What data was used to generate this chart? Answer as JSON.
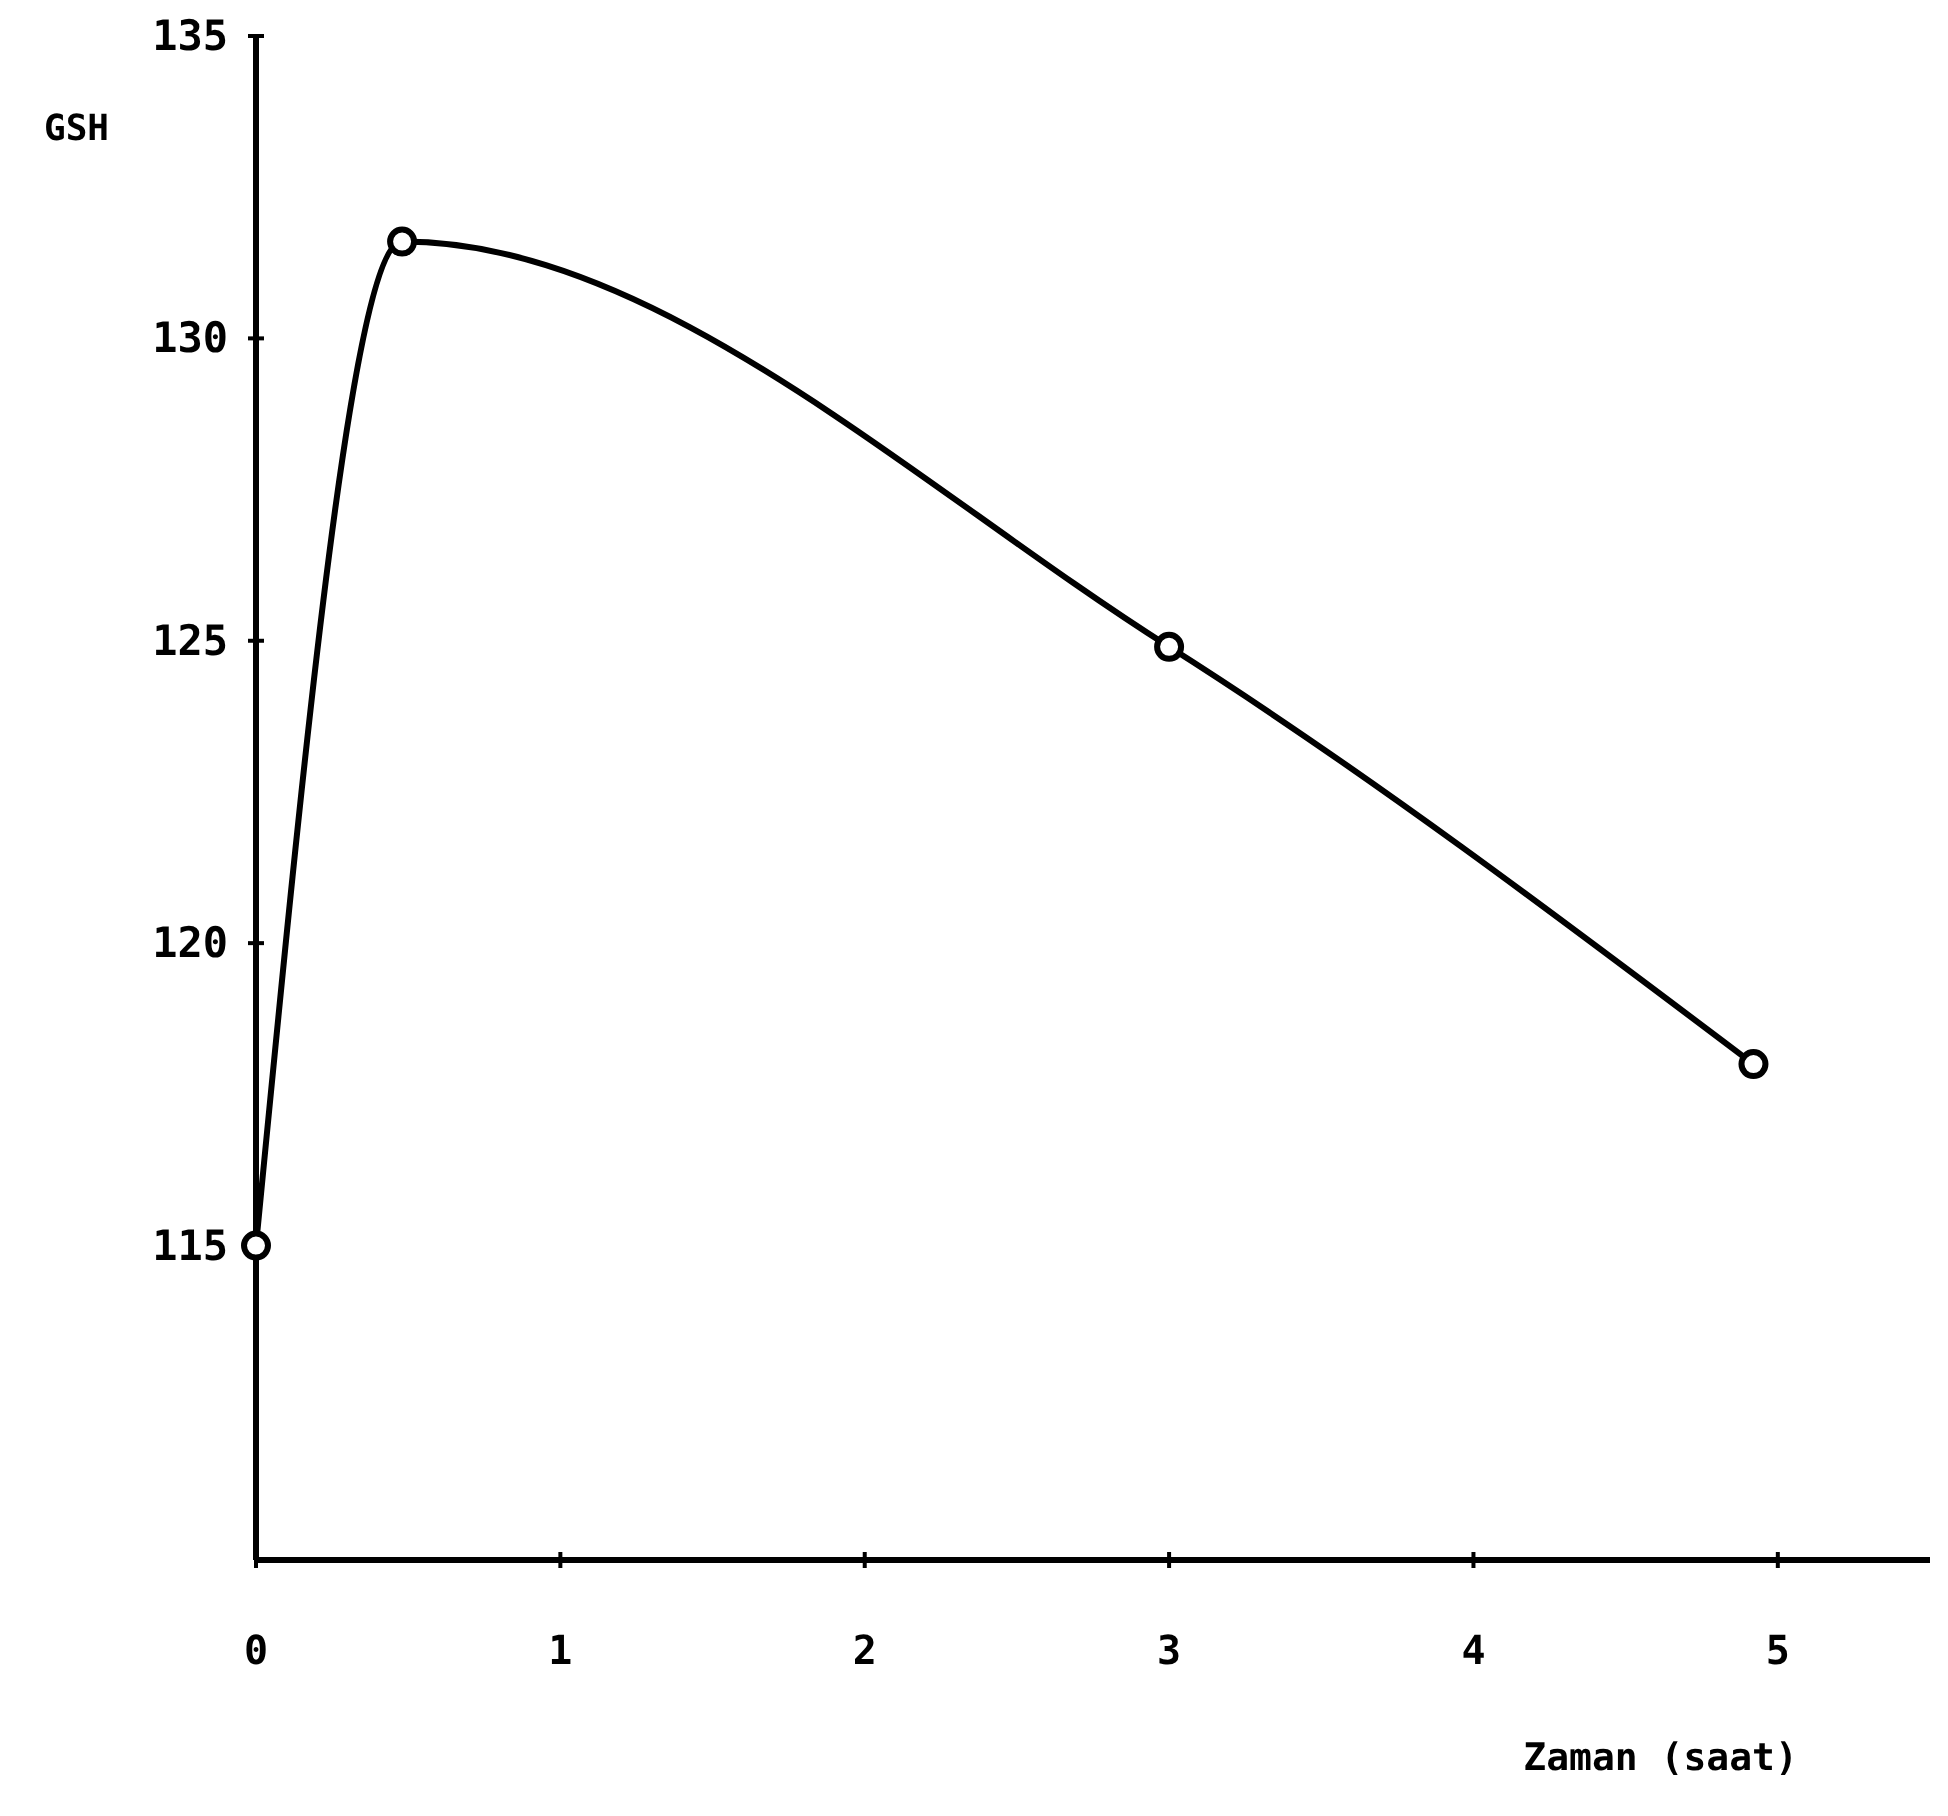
{
  "chart_data": {
    "type": "line",
    "xlabel": "Zaman (saat)",
    "ylabel": "GSH",
    "x": [
      0,
      0.48,
      3,
      4.92
    ],
    "series": [
      {
        "color": "#000000",
        "values": [
          115,
          131.6,
          124.9,
          118
        ]
      }
    ],
    "xlim": [
      0,
      5.5
    ],
    "ylim": [
      109.8,
      135
    ],
    "xticks": [
      0,
      1,
      2,
      3,
      4,
      5
    ],
    "yticks": [
      115,
      120,
      125,
      130,
      135
    ],
    "grid": false,
    "marker": "circle",
    "line_style": "solid"
  }
}
